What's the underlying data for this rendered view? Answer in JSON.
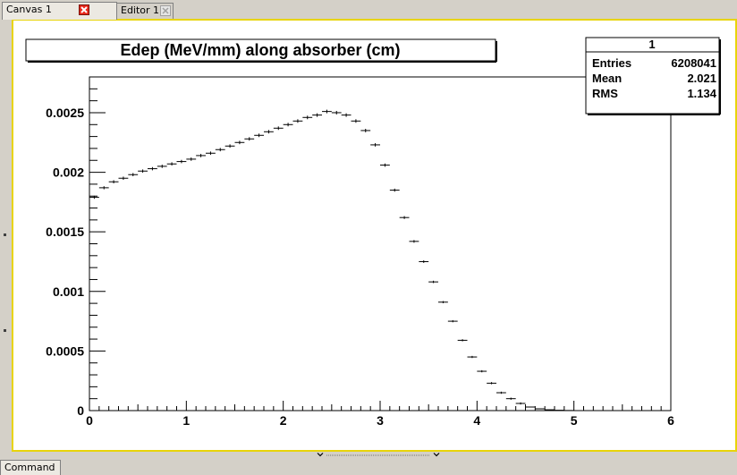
{
  "tabs": [
    {
      "label": "Canvas 1",
      "active": true,
      "close_icon": "close-x-red-icon"
    },
    {
      "label": "Editor 1",
      "active": false,
      "close_icon": "close-x-grey-icon"
    }
  ],
  "status": {
    "command_tab_label": "Command"
  },
  "stats_box": {
    "title": "1",
    "rows": [
      {
        "label": "Entries",
        "value": "6208041"
      },
      {
        "label": "Mean",
        "value": "2.021"
      },
      {
        "label": "RMS",
        "value": "1.134"
      }
    ]
  },
  "colors": {
    "canvas_border": "#e8d40a",
    "close_red": "#e8291c",
    "window_bg": "#d4d0c8"
  },
  "chart_data": {
    "type": "histogram",
    "title": "Edep (MeV/mm) along absorber (cm)",
    "xlabel": "",
    "ylabel": "",
    "xlim": [
      0,
      6
    ],
    "ylim": [
      0,
      0.0028
    ],
    "bin_width": 0.1,
    "x_tick_labels": [
      "0",
      "1",
      "2",
      "3",
      "4",
      "5",
      "6"
    ],
    "y_tick_labels": [
      "0",
      "0.0005",
      "0.001",
      "0.0015",
      "0.002",
      "0.0025"
    ],
    "y_ticks": [
      0,
      0.0005,
      0.001,
      0.0015,
      0.002,
      0.0025
    ],
    "x_ticks": [
      0,
      1,
      2,
      3,
      4,
      5,
      6
    ],
    "grid": false,
    "series": [
      {
        "bin_start": [
          0,
          0.1,
          0.2,
          0.3,
          0.4,
          0.5,
          0.6,
          0.7,
          0.8,
          0.9,
          1.0,
          1.1,
          1.2,
          1.3,
          1.4,
          1.5,
          1.6,
          1.7,
          1.8,
          1.9,
          2.0,
          2.1,
          2.2,
          2.3,
          2.4,
          2.5,
          2.6,
          2.7,
          2.8,
          2.9,
          3.0,
          3.1,
          3.2,
          3.3,
          3.4,
          3.5,
          3.6,
          3.7,
          3.8,
          3.9,
          4.0,
          4.1,
          4.2,
          4.3,
          4.4,
          4.5,
          4.6,
          4.7,
          4.8,
          4.9,
          5.0,
          5.1,
          5.2,
          5.3,
          5.4,
          5.5,
          5.6,
          5.7,
          5.8,
          5.9
        ],
        "values": [
          0.00179,
          0.00187,
          0.00192,
          0.00195,
          0.00198,
          0.00201,
          0.00203,
          0.00205,
          0.00207,
          0.00209,
          0.00211,
          0.00214,
          0.00216,
          0.00219,
          0.00222,
          0.00225,
          0.00228,
          0.00231,
          0.00234,
          0.00237,
          0.0024,
          0.00243,
          0.00246,
          0.00248,
          0.00251,
          0.0025,
          0.00248,
          0.00243,
          0.00235,
          0.00223,
          0.00206,
          0.00185,
          0.00162,
          0.00142,
          0.00125,
          0.00108,
          0.00091,
          0.00075,
          0.00059,
          0.00045,
          0.00033,
          0.00023,
          0.00015,
          0.0001,
          6e-05,
          3e-05,
          1.5e-05,
          7e-06,
          3e-06,
          1e-06,
          0,
          0,
          0,
          0,
          0,
          0,
          0,
          0,
          0,
          0
        ]
      }
    ]
  }
}
